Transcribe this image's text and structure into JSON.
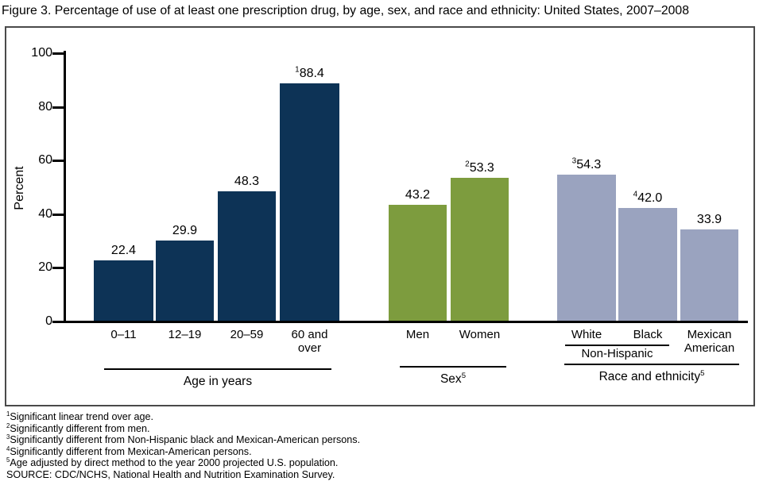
{
  "title": "Figure 3. Percentage of use of at least one prescription drug, by age, sex, and race and ethnicity: United States, 2007–2008",
  "chart_data": {
    "type": "bar",
    "title": "Figure 3. Percentage of use of at least one prescription drug, by age, sex, and race and ethnicity: United States, 2007–2008",
    "ylabel": "Percent",
    "ylim": [
      0,
      100
    ],
    "yticks": [
      0,
      20,
      40,
      60,
      80,
      100
    ],
    "grid": false,
    "legend": "none",
    "groups": [
      {
        "label": "Age in years",
        "label_sup": "",
        "color": "#0d3356",
        "bars": [
          {
            "category": "0–11",
            "value": 22.4,
            "display": "22.4",
            "sup": ""
          },
          {
            "category": "12–19",
            "value": 29.9,
            "display": "29.9",
            "sup": ""
          },
          {
            "category": "20–59",
            "value": 48.3,
            "display": "48.3",
            "sup": ""
          },
          {
            "category": "60 and\nover",
            "value": 88.4,
            "display": "88.4",
            "sup": "1"
          }
        ]
      },
      {
        "label": "Sex",
        "label_sup": "5",
        "color": "#7d9c3e",
        "bars": [
          {
            "category": "Men",
            "value": 43.2,
            "display": "43.2",
            "sup": ""
          },
          {
            "category": "Women",
            "value": 53.3,
            "display": "53.3",
            "sup": "2"
          }
        ]
      },
      {
        "label": "Race and ethnicity",
        "label_sup": "5",
        "color": "#9aa3bf",
        "bars": [
          {
            "category": "White",
            "value": 54.3,
            "display": "54.3",
            "sup": "3"
          },
          {
            "category": "Black",
            "value": 42.0,
            "display": "42.0",
            "sup": "4"
          },
          {
            "category": "Mexican\nAmerican",
            "value": 33.9,
            "display": "33.9",
            "sup": ""
          }
        ],
        "bracket_label": "Non-Hispanic"
      }
    ]
  },
  "footnotes": [
    {
      "sup": "1",
      "text": "Significant linear trend over age."
    },
    {
      "sup": "2",
      "text": "Significantly different from men."
    },
    {
      "sup": "3",
      "text": "Significantly different from Non-Hispanic black and Mexican-American persons."
    },
    {
      "sup": "4",
      "text": "Significantly different from Mexican-American persons."
    },
    {
      "sup": "5",
      "text": "Age adjusted by direct method to the year 2000 projected U.S. population."
    },
    {
      "sup": "",
      "text": "SOURCE: CDC/NCHS, National Health and Nutrition Examination Survey."
    }
  ]
}
